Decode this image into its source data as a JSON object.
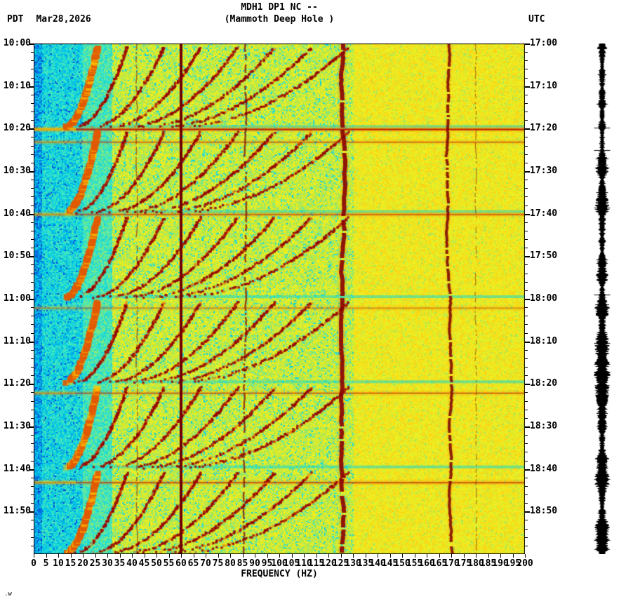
{
  "header": {
    "title": "MDH1 DP1 NC --",
    "subtitle": "(Mammoth Deep Hole )",
    "tz_left": "PDT",
    "date": "Mar28,2026",
    "tz_right": "UTC"
  },
  "corner_note": ".w",
  "waveform_strip": {
    "color": "#000000"
  },
  "chart_data": {
    "type": "heatmap",
    "subtype": "seismic-spectrogram",
    "title": "MDH1 DP1 NC -- (Mammoth Deep Hole )",
    "xlabel": "FREQUENCY (HZ)",
    "x_unit": "Hz",
    "x_range": [
      0,
      200
    ],
    "x_tick_step": 5,
    "freq_tick_labels": [
      "0",
      "5",
      "10",
      "15",
      "20",
      "25",
      "30",
      "35",
      "40",
      "45",
      "50",
      "55",
      "60",
      "65",
      "70",
      "75",
      "80",
      "85",
      "90",
      "95",
      "100",
      "105",
      "110",
      "115",
      "120",
      "125",
      "130",
      "135",
      "140",
      "145",
      "150",
      "155",
      "160",
      "165",
      "170",
      "175",
      "180",
      "185",
      "190",
      "195",
      "200"
    ],
    "left_time_axis": {
      "timezone": "PDT",
      "labels": [
        "10:00",
        "10:10",
        "10:20",
        "10:30",
        "10:40",
        "10:50",
        "11:00",
        "11:10",
        "11:20",
        "11:30",
        "11:40",
        "11:50"
      ]
    },
    "right_time_axis": {
      "timezone": "UTC",
      "labels": [
        "17:00",
        "17:10",
        "17:20",
        "17:30",
        "17:40",
        "17:50",
        "18:00",
        "18:10",
        "18:20",
        "18:30",
        "18:40",
        "18:50"
      ]
    },
    "time_span_minutes": 120,
    "colormap_stops": [
      {
        "v": 0.0,
        "color": "#000090"
      },
      {
        "v": 0.18,
        "color": "#0048e0"
      },
      {
        "v": 0.3,
        "color": "#00c8e8"
      },
      {
        "v": 0.42,
        "color": "#40e8c0"
      },
      {
        "v": 0.5,
        "color": "#90e870"
      },
      {
        "v": 0.58,
        "color": "#c8e838"
      },
      {
        "v": 0.68,
        "color": "#f0f020"
      },
      {
        "v": 0.78,
        "color": "#ffc810"
      },
      {
        "v": 0.88,
        "color": "#e85810"
      },
      {
        "v": 1.0,
        "color": "#8a0000"
      }
    ],
    "background_regions": [
      {
        "f_max": 3,
        "base": 0.2,
        "spread": 0.15
      },
      {
        "f_max": 20,
        "base": 0.26,
        "spread": 0.18
      },
      {
        "f_max": 32,
        "base": 0.34,
        "spread": 0.16
      },
      {
        "f_max": 130,
        "base": 0.5,
        "spread": 0.2
      },
      {
        "f_max": 200,
        "base": 0.62,
        "spread": 0.14
      }
    ],
    "vertical_lines_hz": [
      {
        "hz": 42,
        "width": 1.5,
        "alpha": 0.55,
        "wiggle": 1,
        "color": "#7a0000",
        "gap": 0.3,
        "halo": 0
      },
      {
        "hz": 60,
        "width": 4,
        "alpha": 1,
        "wiggle": 0,
        "color": "#700000",
        "gap": 0,
        "halo": 0
      },
      {
        "hz": 86,
        "width": 2.5,
        "alpha": 0.7,
        "wiggle": 2,
        "color": "#7a0000",
        "gap": 0.22,
        "halo": 0
      },
      {
        "hz": 126,
        "width": 6,
        "alpha": 0.9,
        "wiggle": 3,
        "color": "#8a0000",
        "gap": 0.08,
        "halo": 12
      },
      {
        "hz": 169,
        "width": 4,
        "alpha": 0.85,
        "wiggle": 6,
        "color": "#7a0000",
        "gap": 0.1,
        "halo": 8
      },
      {
        "hz": 180,
        "width": 1.2,
        "alpha": 0.5,
        "wiggle": 1,
        "color": "#700000",
        "gap": 0.35,
        "halo": 0
      }
    ],
    "event_blocks": {
      "count": 6,
      "period_minutes": 20,
      "harmonics": 7,
      "f_start_base_hz": 17,
      "f_start_step_hz": 7,
      "f_end_base_hz": 38,
      "f_end_step_hz": 15
    },
    "horizontal_streaks": [
      {
        "t_min": 20,
        "strength": 0.85
      },
      {
        "t_min": 23,
        "strength": 0.4
      },
      {
        "t_min": 40,
        "strength": 0.5
      },
      {
        "t_min": 62,
        "strength": 0.3
      },
      {
        "t_min": 82,
        "strength": 0.45
      },
      {
        "t_min": 103,
        "strength": 0.55
      }
    ]
  }
}
